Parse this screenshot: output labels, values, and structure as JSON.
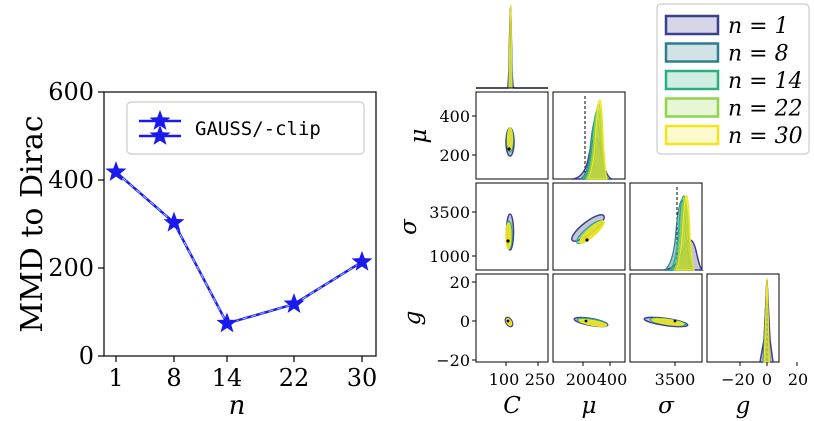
{
  "left_chart": {
    "ylabel": "MMD to Dirac",
    "xlabel": "n",
    "legend_label": "GAUSS/-clip",
    "line_color": "#1a1aee",
    "ytick_labels": [
      "0",
      "200",
      "400",
      "600"
    ],
    "xtick_labels": [
      "1",
      "8",
      "14",
      "22",
      "30"
    ]
  },
  "corner": {
    "col_labels": [
      "C",
      "μ",
      "σ",
      "g"
    ],
    "row_labels": [
      "μ",
      "σ",
      "g"
    ],
    "mu_ticks": [
      "400",
      "200"
    ],
    "sigma_ticks": [
      "3500",
      "1000"
    ],
    "g_ticks": [
      "20",
      "0",
      "−20"
    ],
    "x_ticks_C": [
      "100",
      "250"
    ],
    "x_ticks_mu": [
      "200",
      "400"
    ],
    "x_ticks_sigma": [
      "3500"
    ],
    "x_ticks_g": [
      "−20",
      "0",
      "20"
    ],
    "legend_items": [
      {
        "label": "n = 1",
        "color": "#3b3f8f"
      },
      {
        "label": "n = 8",
        "color": "#2f7e8e"
      },
      {
        "label": "n = 14",
        "color": "#2ab07f"
      },
      {
        "label": "n = 22",
        "color": "#8fd44a"
      },
      {
        "label": "n = 30",
        "color": "#f1e51d"
      }
    ]
  },
  "chart_data": [
    {
      "type": "line",
      "title": "",
      "xlabel": "n",
      "ylabel": "MMD to Dirac",
      "categories": [
        "1",
        "8",
        "14",
        "22",
        "30"
      ],
      "series": [
        {
          "name": "GAUSS/-clip",
          "values": [
            418,
            303,
            74,
            118,
            214
          ]
        }
      ],
      "ylim": [
        0,
        600
      ],
      "legend": "top-right",
      "grid": false
    },
    {
      "type": "scatter",
      "title": "",
      "params": [
        "C",
        "μ",
        "σ",
        "g"
      ],
      "series_names": [
        "n = 1",
        "n = 8",
        "n = 14",
        "n = 22",
        "n = 30"
      ],
      "legend": "top-right",
      "axis_ranges": {
        "C": [
          30,
          300
        ],
        "μ": [
          50,
          520
        ],
        "σ": [
          0,
          5500
        ],
        "g": [
          -25,
          25
        ]
      }
    }
  ]
}
